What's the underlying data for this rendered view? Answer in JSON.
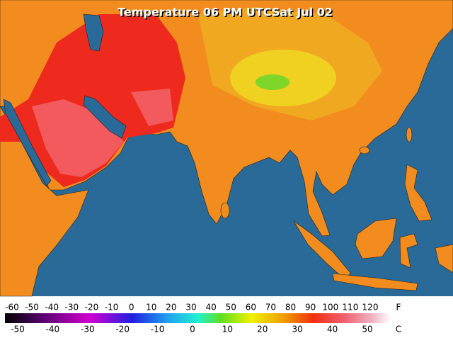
{
  "title": "Temperature 06 PM UTCSat Jul 02",
  "legend": {
    "fahrenheit": {
      "unit": "F",
      "labels": [
        -60,
        -50,
        -40,
        -30,
        -20,
        -10,
        0,
        10,
        20,
        30,
        40,
        50,
        60,
        70,
        80,
        90,
        100,
        110,
        120
      ]
    },
    "celsius": {
      "unit": "C",
      "labels": [
        -50,
        -40,
        -30,
        -20,
        -10,
        0,
        10,
        20,
        30,
        40,
        50
      ]
    }
  }
}
